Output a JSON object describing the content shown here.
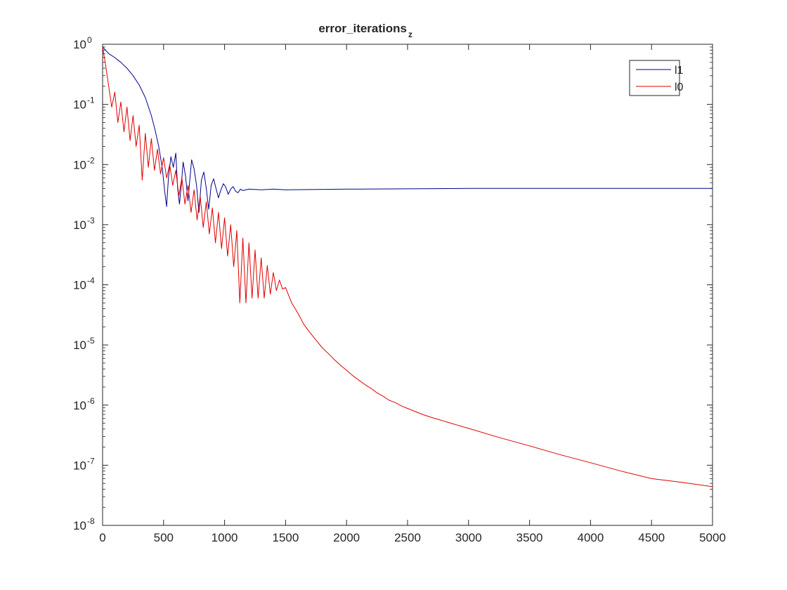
{
  "chart_data": {
    "type": "line",
    "title": "error_iterations",
    "title_subscript": "z",
    "xlabel": "",
    "ylabel": "",
    "yscale": "log",
    "xlim": [
      0,
      5000
    ],
    "ylim": [
      1e-08,
      1
    ],
    "grid": false,
    "legend_position": "top-right",
    "x_ticks": [
      0,
      500,
      1000,
      1500,
      2000,
      2500,
      3000,
      3500,
      4000,
      4500,
      5000
    ],
    "y_ticks": [
      {
        "value": 1e-08,
        "base": "10",
        "exp": "-8"
      },
      {
        "value": 1e-07,
        "base": "10",
        "exp": "-7"
      },
      {
        "value": 1e-06,
        "base": "10",
        "exp": "-6"
      },
      {
        "value": 1e-05,
        "base": "10",
        "exp": "-5"
      },
      {
        "value": 0.0001,
        "base": "10",
        "exp": "-4"
      },
      {
        "value": 0.001,
        "base": "10",
        "exp": "-3"
      },
      {
        "value": 0.01,
        "base": "10",
        "exp": "-2"
      },
      {
        "value": 0.1,
        "base": "10",
        "exp": "-1"
      },
      {
        "value": 1,
        "base": "10",
        "exp": "0"
      }
    ],
    "series": [
      {
        "name": "l1",
        "color": "#00008b",
        "x": [
          0,
          50,
          100,
          150,
          200,
          250,
          300,
          350,
          400,
          430,
          460,
          490,
          510,
          525,
          540,
          560,
          580,
          600,
          615,
          630,
          645,
          660,
          680,
          700,
          715,
          730,
          750,
          770,
          790,
          810,
          830,
          850,
          870,
          890,
          910,
          930,
          950,
          970,
          990,
          1010,
          1030,
          1050,
          1070,
          1090,
          1110,
          1130,
          1150,
          1200,
          1300,
          1400,
          1500,
          2000,
          3000,
          4000,
          5000
        ],
        "y": [
          0.9,
          0.7,
          0.6,
          0.5,
          0.4,
          0.3,
          0.21,
          0.13,
          0.065,
          0.038,
          0.02,
          0.0085,
          0.0035,
          0.002,
          0.006,
          0.0135,
          0.009,
          0.0155,
          0.004,
          0.0022,
          0.0045,
          0.011,
          0.0065,
          0.0025,
          0.0055,
          0.012,
          0.0085,
          0.0045,
          0.0016,
          0.0055,
          0.0075,
          0.004,
          0.0018,
          0.0045,
          0.0058,
          0.004,
          0.0028,
          0.0038,
          0.0048,
          0.0042,
          0.0032,
          0.0039,
          0.0043,
          0.0036,
          0.0034,
          0.0039,
          0.0037,
          0.0039,
          0.0038,
          0.0039,
          0.0038,
          0.0039,
          0.004,
          0.004,
          0.004
        ]
      },
      {
        "name": "l0",
        "color": "#e00000",
        "x": [
          0,
          25,
          50,
          75,
          100,
          125,
          150,
          175,
          200,
          225,
          250,
          275,
          300,
          325,
          350,
          375,
          400,
          425,
          450,
          475,
          500,
          525,
          550,
          575,
          600,
          625,
          650,
          675,
          700,
          725,
          750,
          775,
          800,
          825,
          850,
          875,
          900,
          925,
          950,
          975,
          1000,
          1025,
          1050,
          1075,
          1100,
          1125,
          1150,
          1175,
          1200,
          1225,
          1250,
          1275,
          1300,
          1325,
          1350,
          1375,
          1400,
          1425,
          1450,
          1475,
          1500,
          1550,
          1600,
          1650,
          1700,
          1750,
          1800,
          1850,
          1900,
          1950,
          2000,
          2050,
          2100,
          2150,
          2200,
          2250,
          2300,
          2350,
          2400,
          2450,
          2500,
          2550,
          2600,
          2650,
          2700,
          2750,
          2800,
          2900,
          3000,
          3250,
          3500,
          3750,
          4000,
          4250,
          4500,
          4750,
          5000
        ],
        "y": [
          0.9,
          0.45,
          0.2,
          0.09,
          0.16,
          0.05,
          0.11,
          0.035,
          0.09,
          0.025,
          0.065,
          0.02,
          0.045,
          0.0055,
          0.033,
          0.009,
          0.027,
          0.008,
          0.018,
          0.007,
          0.013,
          0.006,
          0.01,
          0.0045,
          0.008,
          0.003,
          0.006,
          0.0022,
          0.0045,
          0.0016,
          0.0038,
          0.0012,
          0.003,
          0.0009,
          0.0024,
          0.0007,
          0.0019,
          0.0005,
          0.0016,
          0.0004,
          0.0013,
          0.0003,
          0.001,
          0.0002,
          0.0008,
          5e-05,
          0.0006,
          5e-05,
          0.0005,
          6e-05,
          0.00038,
          6e-05,
          0.00028,
          6e-05,
          0.00021,
          7e-05,
          0.00016,
          8e-05,
          0.00012,
          8.5e-05,
          9e-05,
          5e-05,
          3.4e-05,
          2.2e-05,
          1.6e-05,
          1.2e-05,
          9e-06,
          7.2e-06,
          5.7e-06,
          4.6e-06,
          3.8e-06,
          3.1e-06,
          2.6e-06,
          2.2e-06,
          1.9e-06,
          1.6e-06,
          1.4e-06,
          1.2e-06,
          1.1e-06,
          9.7e-07,
          8.8e-07,
          8e-07,
          7.3e-07,
          6.7e-07,
          6.2e-07,
          5.8e-07,
          5.4e-07,
          4.7e-07,
          4.1e-07,
          2.9e-07,
          2.1e-07,
          1.5e-07,
          1.1e-07,
          8e-08,
          6e-08,
          5.2e-08,
          4.4e-08
        ]
      }
    ]
  }
}
